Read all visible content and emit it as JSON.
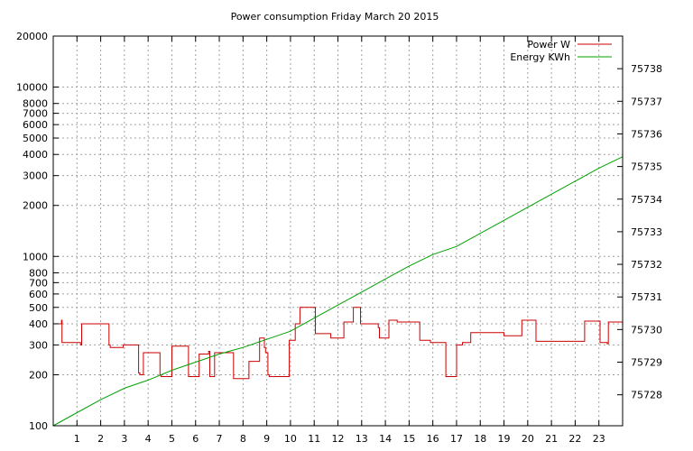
{
  "chart_data": {
    "type": "line",
    "title": "Power consumption Friday March 20 2015",
    "x_ticks": [
      "1",
      "2",
      "3",
      "4",
      "5",
      "6",
      "7",
      "8",
      "9",
      "10",
      "11",
      "12",
      "13",
      "14",
      "15",
      "16",
      "17",
      "18",
      "19",
      "20",
      "21",
      "22",
      "23"
    ],
    "xlim": [
      0,
      24
    ],
    "y_left": {
      "scale": "log",
      "lim": [
        100,
        20000
      ],
      "ticks": [
        100,
        200,
        300,
        400,
        500,
        600,
        700,
        800,
        1000,
        2000,
        3000,
        4000,
        5000,
        6000,
        7000,
        8000,
        10000,
        20000
      ],
      "tick_labels": [
        "100",
        "200",
        "300",
        "400",
        "500",
        "600",
        "700",
        "800",
        "1000",
        "2000",
        "3000",
        "4000",
        "5000",
        "6000",
        "7000",
        "8000",
        "10000",
        "20000"
      ]
    },
    "y_right": {
      "scale": "linear",
      "lim": [
        75727.05,
        75739.0
      ],
      "ticks": [
        75728,
        75729,
        75730,
        75731,
        75732,
        75733,
        75734,
        75735,
        75736,
        75737,
        75738
      ],
      "tick_labels": [
        "75728",
        "75729",
        "75730",
        "75731",
        "75732",
        "75733",
        "75734",
        "75735",
        "75736",
        "75737",
        "75738"
      ]
    },
    "grid": true,
    "legend_position": "top-right",
    "series": [
      {
        "name": "Power W",
        "color": "#cc0000",
        "axis": "left",
        "x": [
          0,
          0.35,
          0.37,
          0.4,
          1.15,
          1.2,
          2.35,
          2.4,
          2.95,
          3.0,
          3.6,
          3.65,
          3.8,
          3.85,
          4.5,
          4.55,
          5.0,
          5.05,
          5.7,
          5.75,
          6.15,
          6.2,
          6.55,
          6.6,
          6.8,
          6.85,
          7.6,
          7.65,
          8.25,
          8.3,
          8.7,
          8.75,
          8.9,
          8.95,
          9.05,
          9.1,
          9.9,
          9.95,
          10.15,
          10.2,
          10.4,
          10.45,
          11.05,
          11.1,
          11.7,
          11.75,
          12.25,
          12.3,
          12.65,
          12.7,
          12.95,
          13.0,
          13.7,
          13.75,
          14.1,
          14.15,
          14.45,
          14.5,
          15.4,
          15.45,
          15.85,
          15.9,
          16.5,
          16.55,
          16.95,
          17.0,
          17.2,
          17.25,
          17.55,
          17.6,
          18.95,
          19.0,
          19.7,
          19.75,
          20.3,
          20.35,
          21.55,
          21.6,
          22.4,
          22.45,
          23.05,
          23.1,
          23.35,
          23.4,
          24.0
        ],
        "y": [
          400,
          420,
          310,
          310,
          300,
          400,
          300,
          290,
          300,
          300,
          205,
          200,
          270,
          270,
          200,
          195,
          295,
          295,
          195,
          195,
          265,
          265,
          275,
          195,
          270,
          270,
          190,
          190,
          240,
          240,
          330,
          330,
          290,
          270,
          200,
          195,
          195,
          320,
          320,
          400,
          500,
          500,
          350,
          350,
          330,
          330,
          410,
          410,
          500,
          500,
          400,
          400,
          380,
          330,
          330,
          420,
          420,
          410,
          410,
          320,
          320,
          310,
          310,
          195,
          195,
          300,
          300,
          310,
          310,
          355,
          355,
          340,
          340,
          420,
          420,
          315,
          315,
          315,
          415,
          415,
          310,
          310,
          305,
          410,
          410
        ]
      },
      {
        "name": "Energy KWh",
        "color": "#00a000",
        "axis": "right",
        "x": [
          0,
          1,
          2,
          3,
          4,
          5,
          6,
          7,
          8,
          9,
          10,
          11,
          12,
          13,
          14,
          15,
          16,
          17,
          18,
          19,
          20,
          21,
          22,
          23,
          24
        ],
        "y": [
          75727.05,
          75727.45,
          75727.85,
          75728.2,
          75728.45,
          75728.75,
          75729.0,
          75729.25,
          75729.45,
          75729.7,
          75729.95,
          75730.35,
          75730.75,
          75731.15,
          75731.55,
          75731.95,
          75732.3,
          75732.55,
          75732.95,
          75733.35,
          75733.75,
          75734.15,
          75734.55,
          75734.95,
          75735.3
        ]
      }
    ]
  }
}
